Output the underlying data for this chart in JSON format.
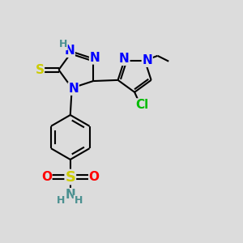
{
  "bg_color": "#dcdcdc",
  "atom_colors": {
    "N": "#0000ff",
    "H": "#4a9090",
    "S_thio": "#cccc00",
    "S_sulfo": "#cccc00",
    "O": "#ff0000",
    "Cl": "#00bb00",
    "C": "#000000",
    "N_nh2": "#4a9090"
  },
  "font_size_atoms": 11,
  "font_size_small": 9,
  "line_color": "#000000",
  "line_width": 1.5
}
